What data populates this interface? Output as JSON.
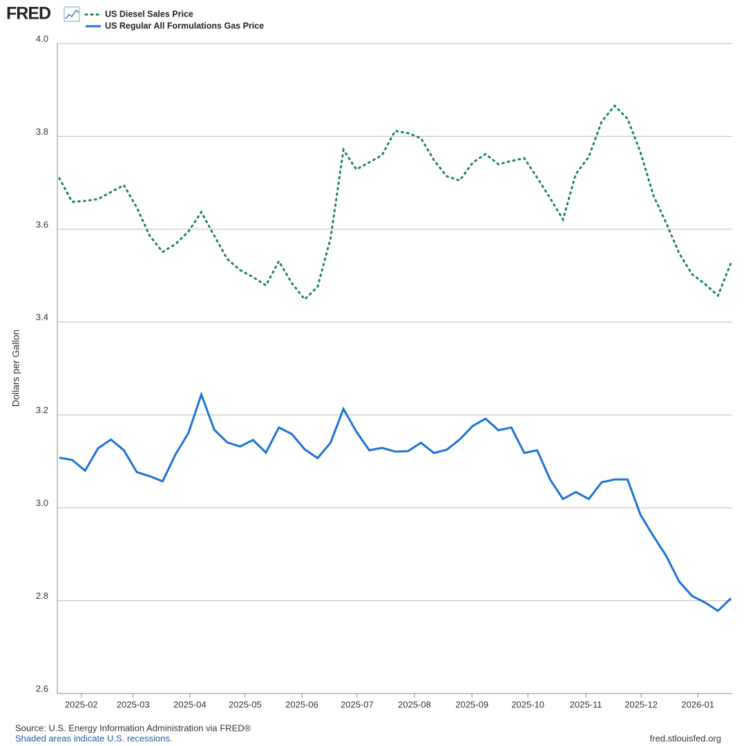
{
  "logo": "FRED",
  "chart_data": {
    "type": "line",
    "ylabel": "Dollars per Gallon",
    "ylim": [
      2.6,
      4.0
    ],
    "yticks": [
      2.6,
      2.8,
      {
        "value": 3,
        "label": "3.0"
      },
      3.2,
      3.4,
      3.6,
      3.8,
      {
        "value": 4,
        "label": "4.0"
      }
    ],
    "xlim": [
      -0.15,
      52.1
    ],
    "xticks": [
      {
        "value": 1.71,
        "label": "2025-02"
      },
      {
        "value": 5.72,
        "label": "2025-03"
      },
      {
        "value": 10.11,
        "label": "2025-04"
      },
      {
        "value": 14.39,
        "label": "2025-05"
      },
      {
        "value": 18.78,
        "label": "2025-06"
      },
      {
        "value": 23.06,
        "label": "2025-07"
      },
      {
        "value": 27.5,
        "label": "2025-08"
      },
      {
        "value": 31.95,
        "label": "2025-09"
      },
      {
        "value": 36.28,
        "label": "2025-10"
      },
      {
        "value": 40.77,
        "label": "2025-11"
      },
      {
        "value": 45.05,
        "label": "2025-12"
      },
      {
        "value": 49.44,
        "label": "2026-01"
      }
    ],
    "grid": true,
    "series": [
      {
        "name": "US Diesel Sales Price",
        "color": "#1f7f6f",
        "line_style": "dotted",
        "values": [
          3.71,
          3.659,
          3.661,
          3.665,
          3.68,
          3.695,
          3.647,
          3.586,
          3.551,
          3.568,
          3.595,
          3.637,
          3.586,
          3.536,
          3.512,
          3.497,
          3.479,
          3.531,
          3.484,
          3.449,
          3.476,
          3.58,
          3.771,
          3.729,
          3.744,
          3.76,
          3.812,
          3.807,
          3.796,
          3.749,
          3.714,
          3.705,
          3.743,
          3.762,
          3.74,
          3.747,
          3.753,
          3.711,
          3.667,
          3.621,
          3.719,
          3.756,
          3.832,
          3.866,
          3.838,
          3.766,
          3.673,
          3.613,
          3.548,
          3.503,
          3.482,
          3.457,
          3.527
        ]
      },
      {
        "name": "US Regular All Formulations Gas Price",
        "color": "#1a73d6",
        "line_style": "solid",
        "values": [
          3.108,
          3.103,
          3.08,
          3.128,
          3.147,
          3.124,
          3.077,
          3.068,
          3.057,
          3.115,
          3.161,
          3.244,
          3.168,
          3.141,
          3.132,
          3.146,
          3.119,
          3.173,
          3.159,
          3.126,
          3.107,
          3.14,
          3.213,
          3.164,
          3.124,
          3.129,
          3.121,
          3.122,
          3.14,
          3.118,
          3.125,
          3.147,
          3.176,
          3.192,
          3.167,
          3.173,
          3.118,
          3.124,
          3.061,
          3.019,
          3.034,
          3.019,
          3.055,
          3.061,
          3.061,
          2.985,
          2.939,
          2.896,
          2.841,
          2.81,
          2.796,
          2.778,
          2.805
        ]
      }
    ],
    "source": "Source: U.S. Energy Information Administration via FRED®",
    "note": "Shaded areas indicate U.S. recessions.",
    "site": "fred.stlouisfed.org"
  }
}
